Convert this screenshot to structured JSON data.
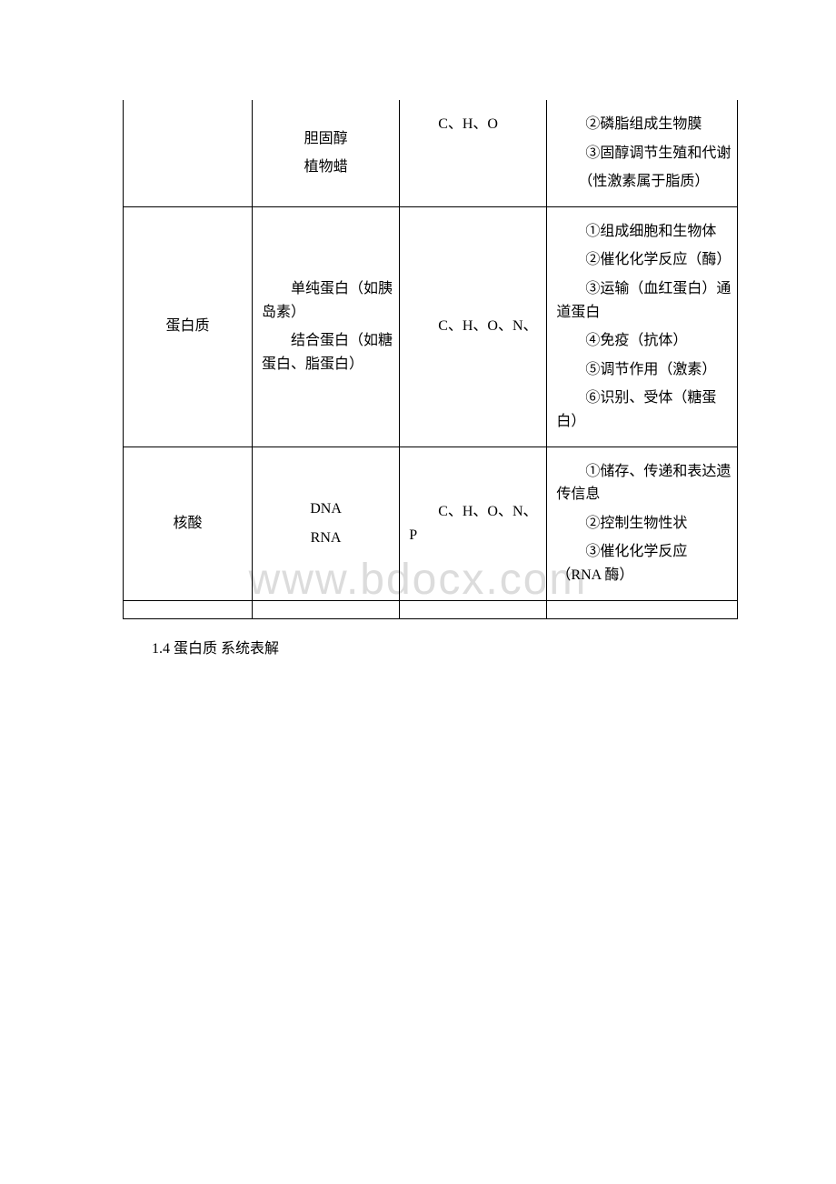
{
  "watermark": "www.bdocx.com",
  "table": {
    "rows": [
      {
        "col1": "",
        "col2_lines": [
          "胆固醇",
          "植物蜡"
        ],
        "col3": "C、H、O",
        "col4_lines": [
          "　　②磷脂组成生物膜",
          "　　③固醇调节生殖和代谢",
          "　　（性激素属于脂质）"
        ],
        "col1_border_top": false,
        "col2_border_top": false,
        "col3_border_top": false,
        "col4_border_top": false
      },
      {
        "col1": "蛋白质",
        "col2_lines": [
          "　　单纯蛋白（如胰岛素）",
          "　　结合蛋白（如糖蛋白、脂蛋白）"
        ],
        "col3": "　　C、H、O、N、",
        "col4_lines": [
          "　　①组成细胞和生物体",
          "　　②催化化学反应（酶）",
          "　　③运输（血红蛋白）通道蛋白",
          "　　④免疫（抗体）",
          "　　⑤调节作用（激素）",
          "　　⑥识别、受体（糖蛋白）"
        ]
      },
      {
        "col1": "核酸",
        "col2_lines": [
          "DNA",
          "RNA"
        ],
        "col3": "　　C、H、O、N、P",
        "col4_lines": [
          "　　①储存、传递和表达遗传信息",
          "　　②控制生物性状",
          "　　③催化化学反应（RNA 酶）"
        ]
      }
    ]
  },
  "footer": "1.4 蛋白质 系统表解",
  "colors": {
    "text": "#000000",
    "background": "#ffffff",
    "border": "#000000",
    "watermark": "#dcdcdc"
  }
}
